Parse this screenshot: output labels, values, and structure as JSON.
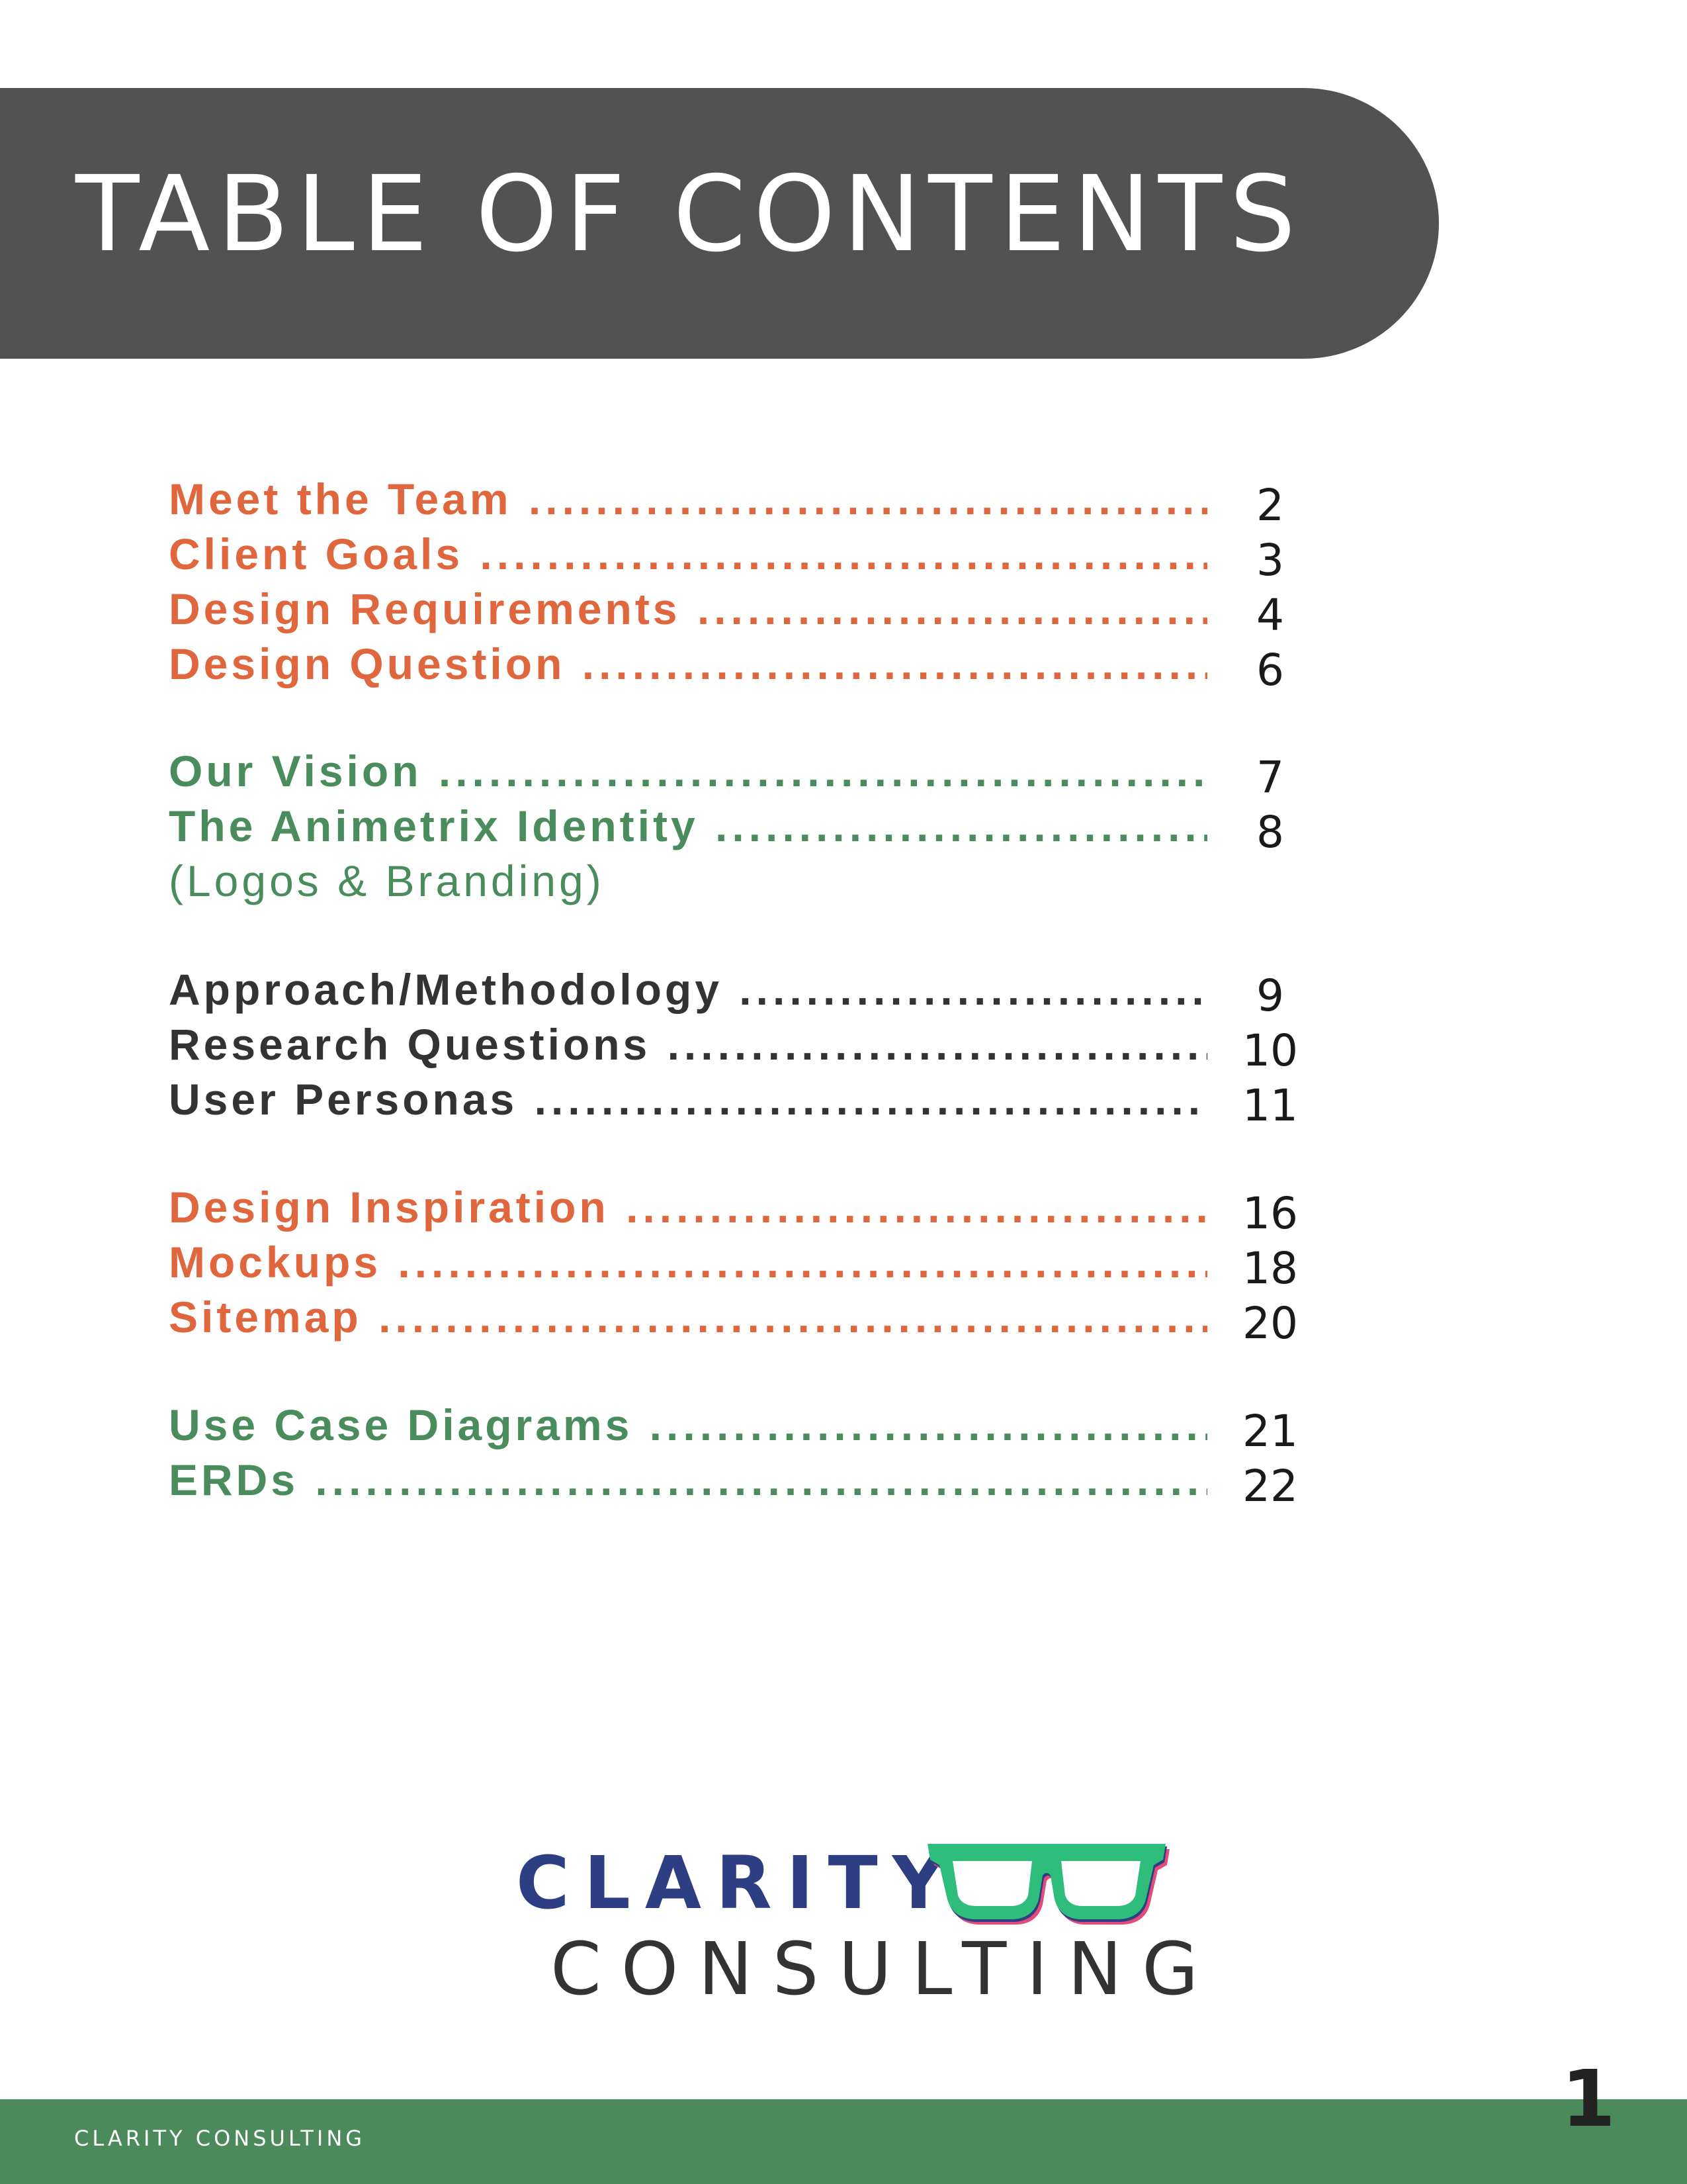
{
  "header": {
    "title": "TABLE OF CONTENTS"
  },
  "colors": {
    "orange": "#e0663e",
    "green": "#4b8c5c",
    "dark": "#333333",
    "header_bg": "#525252",
    "footer_bg": "#4b8a5a",
    "logo_blue": "#2e3e82",
    "glasses_green": "#2ebd7a"
  },
  "toc": [
    {
      "title": "Meet the Team",
      "page": "2",
      "color": "orange"
    },
    {
      "title": "Client Goals",
      "page": "3",
      "color": "orange"
    },
    {
      "title": "Design Requirements",
      "page": "4",
      "color": "orange"
    },
    {
      "title": "Design Question",
      "page": "6",
      "color": "orange"
    },
    {
      "title": "Our Vision",
      "page": "7",
      "color": "green"
    },
    {
      "title": "The Animetrix Identity",
      "page": "8",
      "color": "green",
      "subtitle": "(Logos & Branding)"
    },
    {
      "title": "Approach/Methodology",
      "page": "9",
      "color": "dark"
    },
    {
      "title": "Research Questions",
      "page": "10",
      "color": "dark"
    },
    {
      "title": "User Personas",
      "page": "11",
      "color": "dark"
    },
    {
      "title": "Design Inspiration",
      "page": "16",
      "color": "orange"
    },
    {
      "title": "Mockups",
      "page": "18",
      "color": "orange"
    },
    {
      "title": "Sitemap",
      "page": "20",
      "color": "orange"
    },
    {
      "title": "Use Case Diagrams",
      "page": "21",
      "color": "green"
    },
    {
      "title": "ERDs",
      "page": "22",
      "color": "green"
    }
  ],
  "logo": {
    "line1": "CLARITY",
    "line2": "CONSULTING",
    "icon": "glasses-icon"
  },
  "footer": {
    "text": "CLARITY CONSULTING",
    "page_number": "1"
  }
}
